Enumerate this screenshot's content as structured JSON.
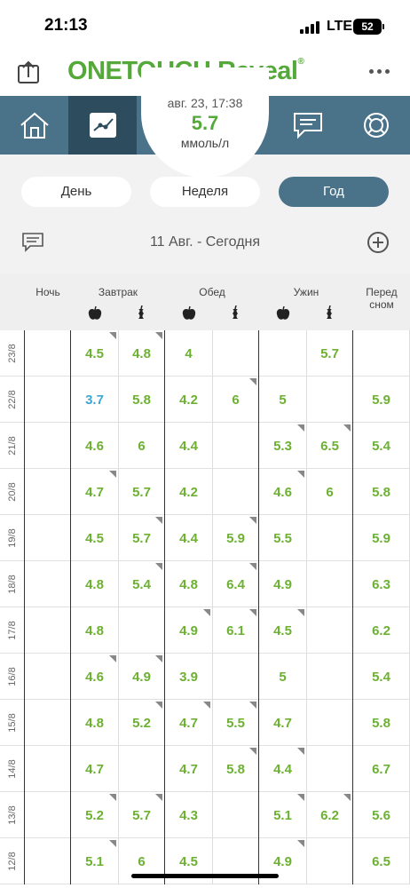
{
  "status_bar": {
    "time": "21:13",
    "network": "LTE",
    "battery": "52"
  },
  "header": {
    "logo": "ONETOUCH Reveal",
    "logo_mark": "®"
  },
  "current_reading": {
    "datetime": "авг. 23, 17:38",
    "value": "5.7",
    "unit": "ммоль/л"
  },
  "nav": {
    "items": [
      "home-icon",
      "chart-icon",
      "current-reading",
      "messages-icon",
      "support-icon"
    ]
  },
  "period_tabs": {
    "day": "День",
    "week": "Неделя",
    "year": "Год",
    "selected": "Год"
  },
  "range": {
    "label": "11 Авг. - Сегодня"
  },
  "columns": {
    "night": "Ночь",
    "breakfast": "Завтрак",
    "lunch": "Обед",
    "dinner": "Ужин",
    "before_sleep_1": "Перед",
    "before_sleep_2": "сном"
  },
  "colors": {
    "in_range": "#6cb132",
    "low": "#3aa8d8",
    "nav": "#4a7289",
    "nav_active": "#2d4d5e",
    "brand": "#55a83a"
  },
  "rows": [
    {
      "date": "23/8",
      "cells": [
        "",
        "4.5",
        "4.8",
        "4",
        "",
        "",
        "5.7",
        ""
      ],
      "flags": [
        0,
        1,
        1,
        0,
        0,
        0,
        0,
        0
      ]
    },
    {
      "date": "22/8",
      "cells": [
        "",
        "3.7",
        "5.8",
        "4.2",
        "6",
        "5",
        "",
        "5.9"
      ],
      "flags": [
        0,
        0,
        0,
        0,
        1,
        0,
        0,
        0
      ],
      "low": [
        1
      ]
    },
    {
      "date": "21/8",
      "cells": [
        "",
        "4.6",
        "6",
        "4.4",
        "",
        "5.3",
        "6.5",
        "5.4"
      ],
      "flags": [
        0,
        0,
        0,
        0,
        0,
        1,
        1,
        0
      ]
    },
    {
      "date": "20/8",
      "cells": [
        "",
        "4.7",
        "5.7",
        "4.2",
        "",
        "4.6",
        "6",
        "5.8"
      ],
      "flags": [
        0,
        1,
        0,
        0,
        0,
        1,
        0,
        0
      ]
    },
    {
      "date": "19/8",
      "cells": [
        "",
        "4.5",
        "5.7",
        "4.4",
        "5.9",
        "5.5",
        "",
        "5.9"
      ],
      "flags": [
        0,
        0,
        1,
        0,
        1,
        0,
        0,
        0
      ]
    },
    {
      "date": "18/8",
      "cells": [
        "",
        "4.8",
        "5.4",
        "4.8",
        "6.4",
        "4.9",
        "",
        "6.3"
      ],
      "flags": [
        0,
        0,
        1,
        0,
        1,
        0,
        0,
        0
      ]
    },
    {
      "date": "17/8",
      "cells": [
        "",
        "4.8",
        "",
        "4.9",
        "6.1",
        "4.5",
        "",
        "6.2"
      ],
      "flags": [
        0,
        0,
        0,
        1,
        1,
        1,
        0,
        0
      ]
    },
    {
      "date": "16/8",
      "cells": [
        "",
        "4.6",
        "4.9",
        "3.9",
        "",
        "5",
        "",
        "5.4"
      ],
      "flags": [
        0,
        1,
        1,
        0,
        0,
        0,
        0,
        0
      ]
    },
    {
      "date": "15/8",
      "cells": [
        "",
        "4.8",
        "5.2",
        "4.7",
        "5.5",
        "4.7",
        "",
        "5.8"
      ],
      "flags": [
        0,
        0,
        1,
        1,
        1,
        0,
        0,
        0
      ]
    },
    {
      "date": "14/8",
      "cells": [
        "",
        "4.7",
        "",
        "4.7",
        "5.8",
        "4.4",
        "",
        "6.7"
      ],
      "flags": [
        0,
        0,
        0,
        0,
        1,
        1,
        0,
        0
      ]
    },
    {
      "date": "13/8",
      "cells": [
        "",
        "5.2",
        "5.7",
        "4.3",
        "",
        "5.1",
        "6.2",
        "5.6"
      ],
      "flags": [
        0,
        1,
        1,
        0,
        0,
        1,
        1,
        0
      ]
    },
    {
      "date": "12/8",
      "cells": [
        "",
        "5.1",
        "6",
        "4.5",
        "",
        "4.9",
        "",
        "6.5"
      ],
      "flags": [
        0,
        1,
        0,
        0,
        0,
        1,
        0,
        0
      ]
    }
  ]
}
